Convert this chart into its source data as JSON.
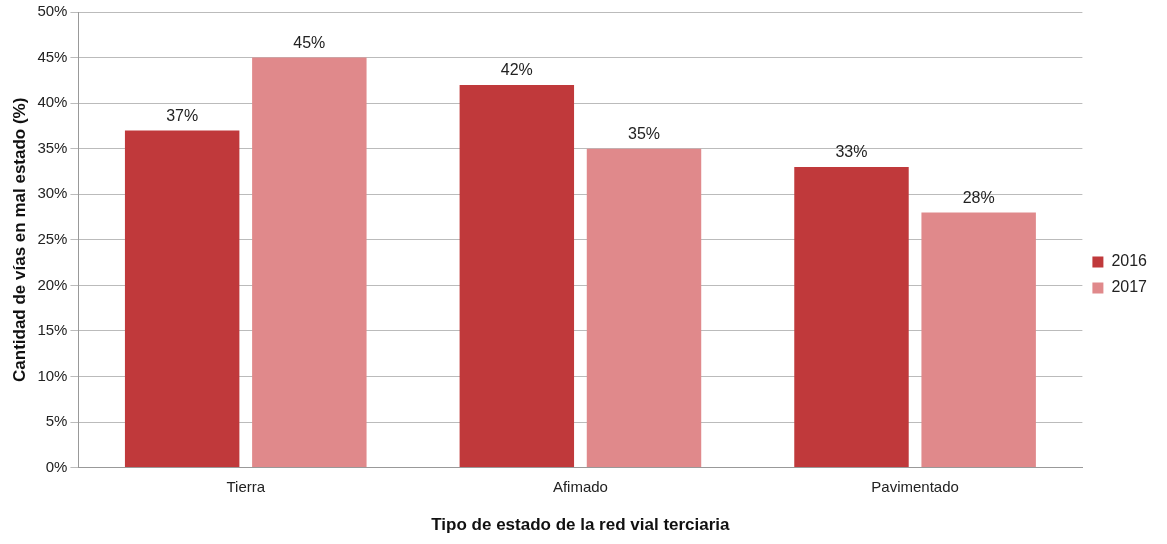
{
  "chart_data": {
    "type": "bar",
    "xlabel": "Tipo de estado de la red vial terciaria",
    "ylabel": "Cantidad de vías en mal estado (%)",
    "categories": [
      "Tierra",
      "Afimado",
      "Pavimentado"
    ],
    "series": [
      {
        "name": "2016",
        "color": "#c0393b",
        "values": [
          37,
          42,
          33
        ],
        "value_labels": [
          "37%",
          "42%",
          "33%"
        ]
      },
      {
        "name": "2017",
        "color": "#e0898b",
        "values": [
          45,
          35,
          28
        ],
        "value_labels": [
          "45%",
          "35%",
          "28%"
        ]
      }
    ],
    "ylim": [
      0,
      50
    ],
    "yticks": [
      {
        "value": 0,
        "label": "0%"
      },
      {
        "value": 5,
        "label": "5%"
      },
      {
        "value": 10,
        "label": "10%"
      },
      {
        "value": 15,
        "label": "15%"
      },
      {
        "value": 20,
        "label": "20%"
      },
      {
        "value": 25,
        "label": "25%"
      },
      {
        "value": 30,
        "label": "30%"
      },
      {
        "value": 35,
        "label": "35%"
      },
      {
        "value": 40,
        "label": "40%"
      },
      {
        "value": 45,
        "label": "45%"
      },
      {
        "value": 50,
        "label": "50%"
      }
    ],
    "grid": "y",
    "legend": "right"
  }
}
